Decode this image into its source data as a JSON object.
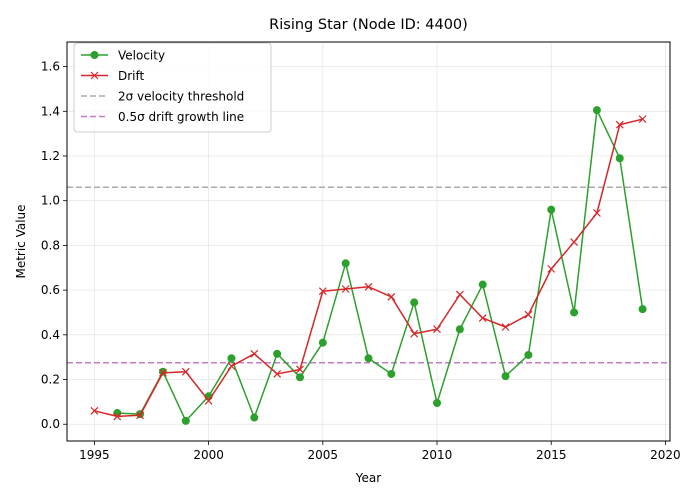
{
  "chart_data": {
    "type": "line",
    "title": "Rising Star (Node ID: 4400)",
    "xlabel": "Year",
    "ylabel": "Metric Value",
    "xlim": [
      1993.8,
      2020.2
    ],
    "ylim": [
      -0.075,
      1.71
    ],
    "xticks": [
      1995,
      2000,
      2005,
      2010,
      2015,
      2020
    ],
    "yticks": [
      0.0,
      0.2,
      0.4,
      0.6,
      0.8,
      1.0,
      1.2,
      1.4,
      1.6
    ],
    "grid": true,
    "legend_position": "top-left",
    "series": [
      {
        "name": "Velocity",
        "color": "#2ca02c",
        "marker": "circle",
        "x": [
          1996,
          1997,
          1998,
          1999,
          2000,
          2001,
          2002,
          2003,
          2004,
          2005,
          2006,
          2007,
          2008,
          2009,
          2010,
          2011,
          2012,
          2013,
          2014,
          2015,
          2016,
          2017,
          2018,
          2019
        ],
        "values": [
          0.05,
          0.045,
          0.235,
          0.015,
          0.125,
          0.295,
          0.03,
          0.315,
          0.21,
          0.365,
          0.72,
          0.295,
          0.225,
          0.545,
          0.095,
          0.425,
          0.625,
          0.215,
          0.31,
          0.96,
          0.5,
          1.405,
          1.19,
          0.515
        ]
      },
      {
        "name": "Drift",
        "color": "#d62728",
        "marker": "x",
        "x": [
          1995,
          1996,
          1997,
          1998,
          1999,
          2000,
          2001,
          2002,
          2003,
          2004,
          2005,
          2006,
          2007,
          2008,
          2009,
          2010,
          2011,
          2012,
          2013,
          2014,
          2015,
          2016,
          2017,
          2018,
          2019
        ],
        "values": [
          0.06,
          0.035,
          0.04,
          0.23,
          0.235,
          0.105,
          0.26,
          0.315,
          0.225,
          0.245,
          0.595,
          0.605,
          0.615,
          0.57,
          0.405,
          0.425,
          0.58,
          0.475,
          0.435,
          0.49,
          0.695,
          0.815,
          0.945,
          1.34,
          1.365
        ]
      }
    ],
    "reference_lines": [
      {
        "name": "2σ velocity threshold",
        "y": 1.06,
        "color": "#aaaaaa",
        "style": "dashed"
      },
      {
        "name": "0.5σ drift growth line",
        "y": 0.275,
        "color": "#c77cc7",
        "style": "dashed"
      }
    ]
  }
}
